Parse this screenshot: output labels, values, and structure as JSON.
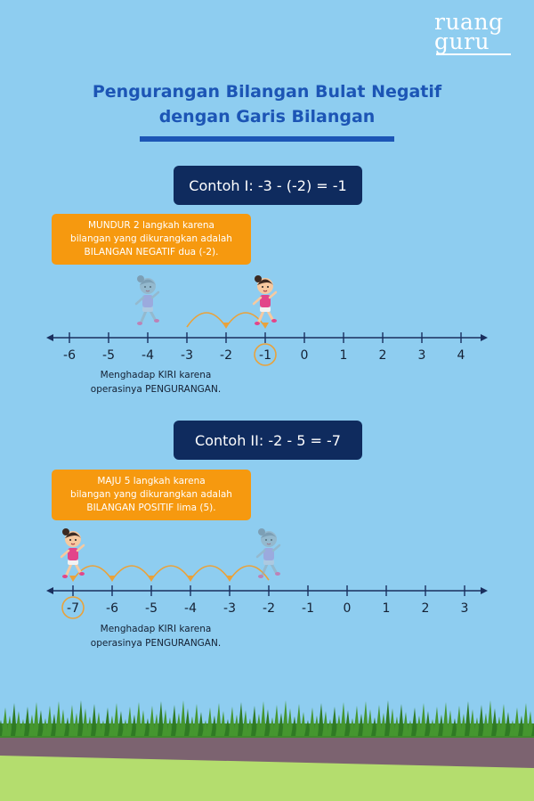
{
  "logo": {
    "line1": "ruang",
    "line2": "guru"
  },
  "title": {
    "line1": "Pengurangan Bilangan Bulat Negatif",
    "line2": "dengan Garis Bilangan"
  },
  "colors": {
    "sky": "#8ecdf0",
    "title_blue": "#1c55b5",
    "box_navy": "#0f2b5e",
    "note_orange": "#f6990f",
    "line_navy": "#1a2f5e",
    "arc_orange": "#e9a23b",
    "grass_green": "#3f8a2c",
    "road_purple": "#7c6370",
    "ground_green": "#b4dd6e"
  },
  "examples": [
    {
      "label": "Contoh I: -3 - (-2) = -1",
      "note": [
        "MUNDUR 2 langkah karena",
        "bilangan yang dikurangkan adalah",
        "BILANGAN NEGATIF dua (-2)."
      ],
      "ticks": [
        "-6",
        "-5",
        "-4",
        "-3",
        "-2",
        "-1",
        "0",
        "1",
        "2",
        "3",
        "4"
      ],
      "start": "-3",
      "answer": "-1",
      "steps": 2,
      "caption": [
        "Menghadap KIRI karena",
        "operasinya PENGURANGAN."
      ]
    },
    {
      "label": "Contoh II: -2 - 5 = -7",
      "note": [
        "MAJU 5 langkah karena",
        "bilangan yang dikurangkan adalah",
        "BILANGAN POSITIF lima (5)."
      ],
      "ticks": [
        "-7",
        "-6",
        "-5",
        "-4",
        "-3",
        "-2",
        "-1",
        "0",
        "1",
        "2",
        "3"
      ],
      "start": "-2",
      "answer": "-7",
      "steps": 5,
      "caption": [
        "Menghadap KIRI karena",
        "operasinya PENGURANGAN."
      ]
    }
  ]
}
